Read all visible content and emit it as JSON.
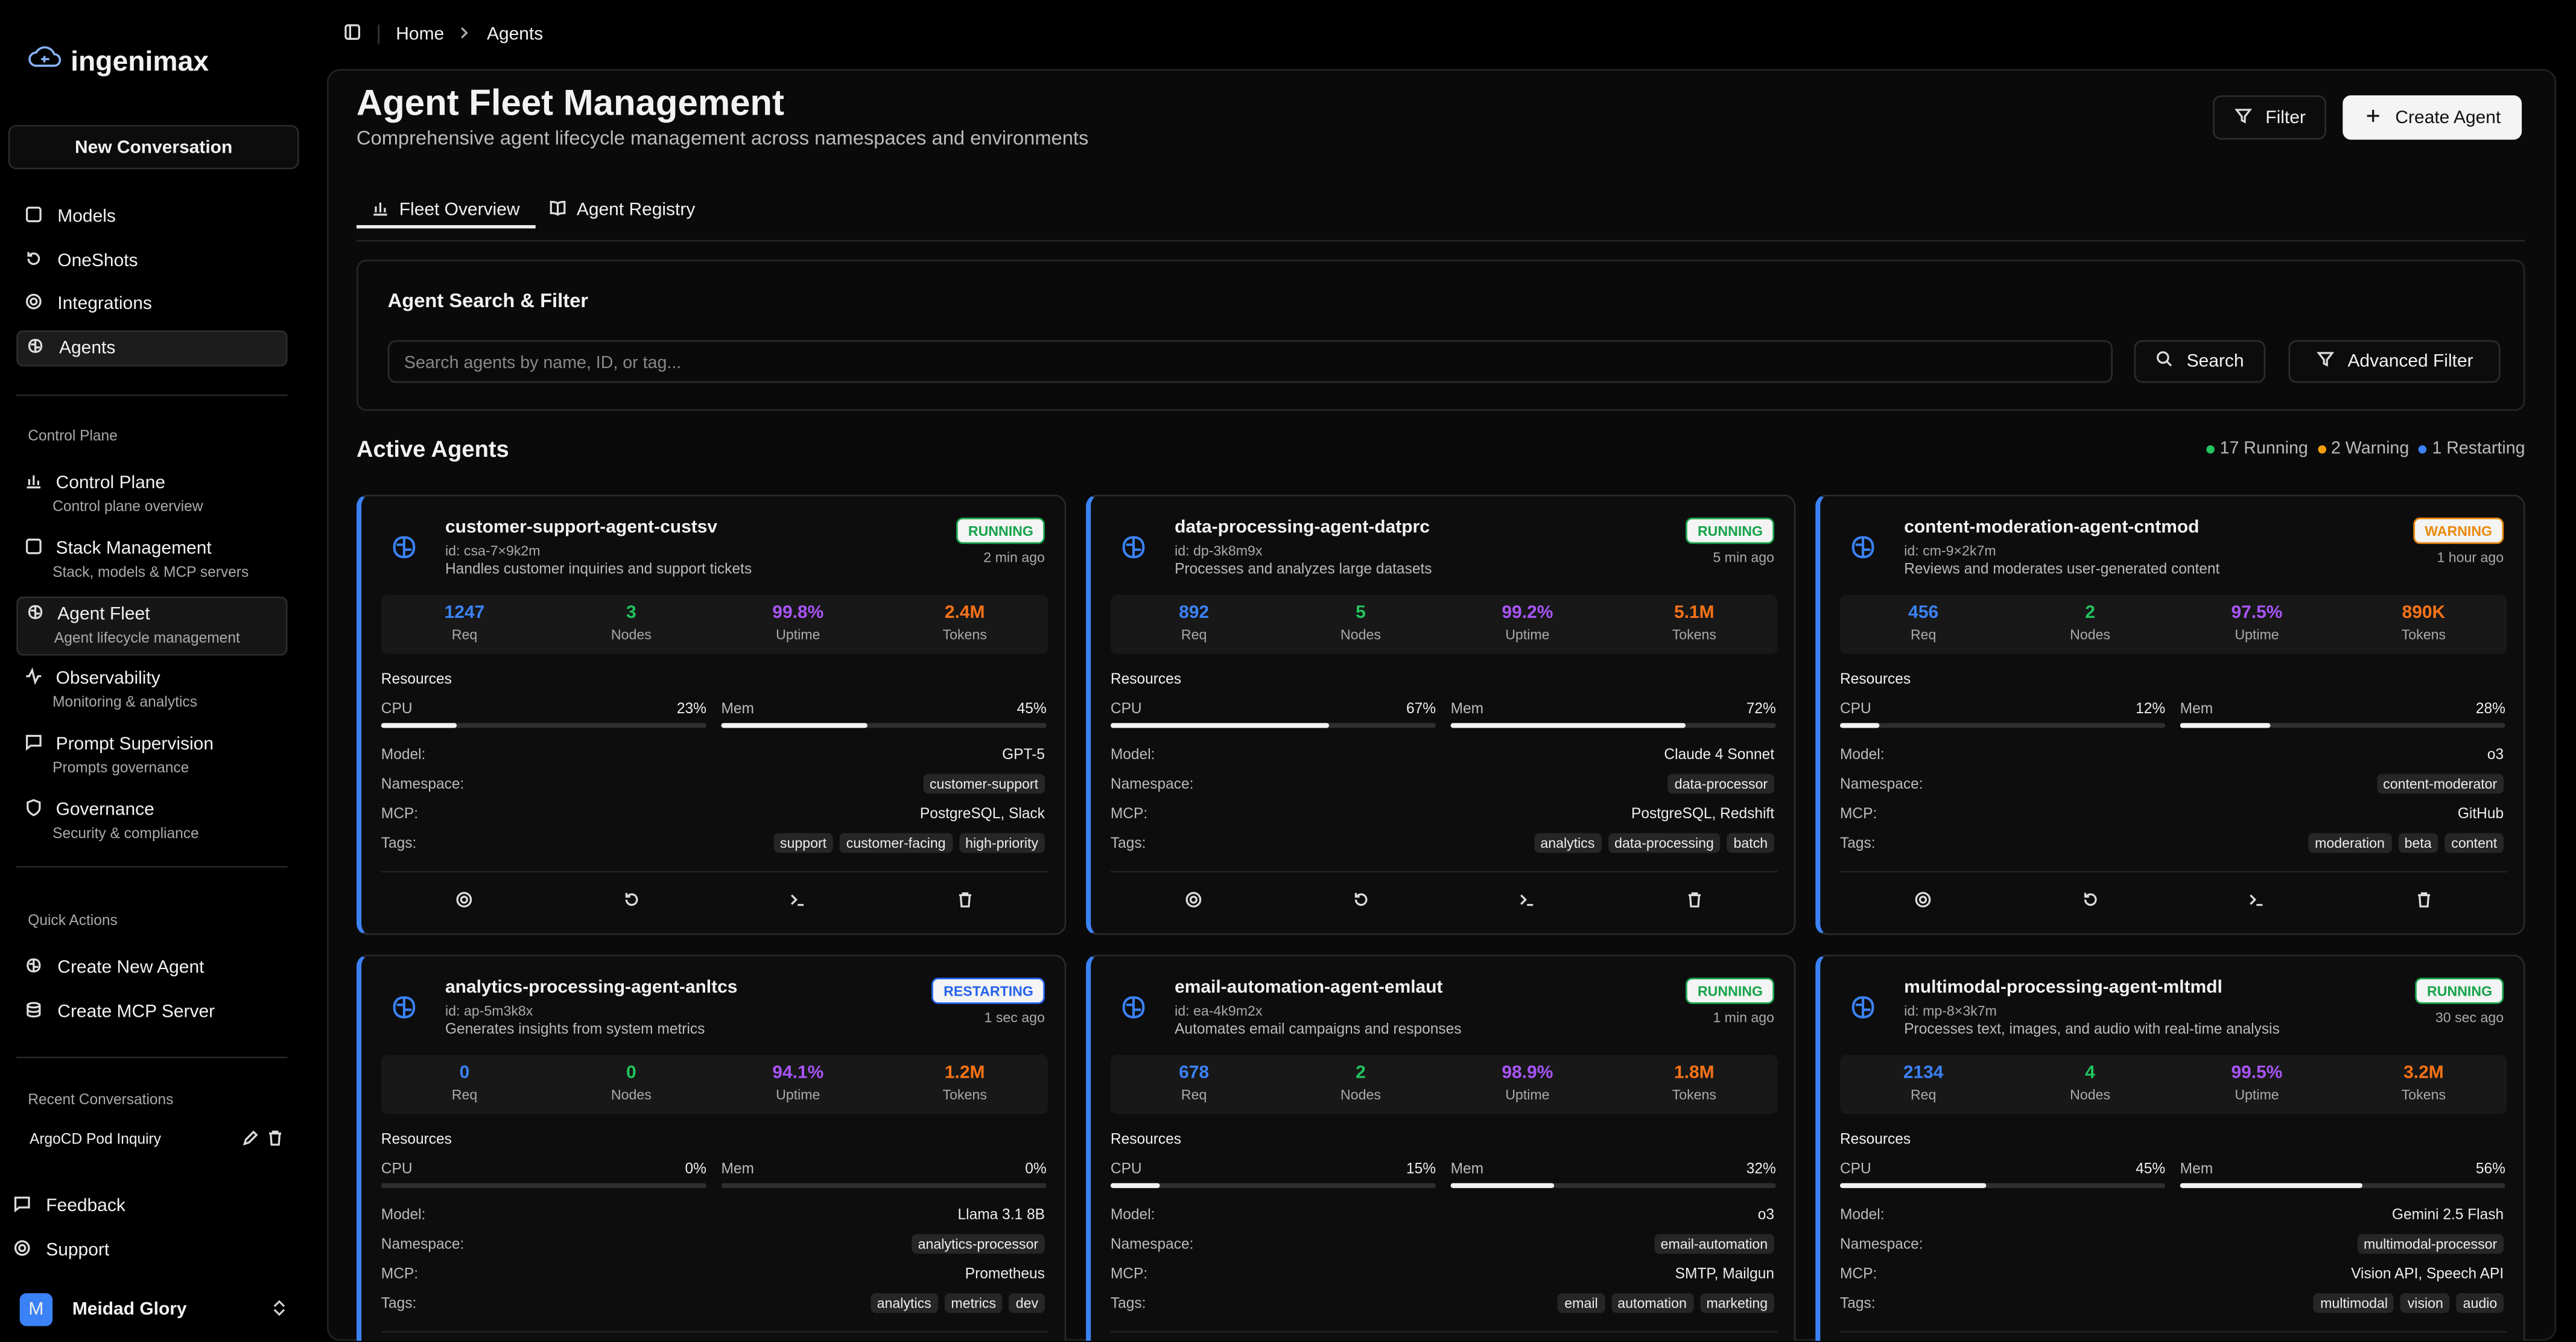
{
  "sidebar": {
    "brand": "ingenimax",
    "new_conversation": "New Conversation",
    "nav": [
      "Models",
      "OneShots",
      "Integrations",
      "Agents"
    ],
    "control_plane": {
      "title": "Control Plane",
      "items": [
        {
          "title": "Control Plane",
          "subtitle": "Control plane overview"
        },
        {
          "title": "Stack Management",
          "subtitle": "Stack, models & MCP servers"
        },
        {
          "title": "Agent Fleet",
          "subtitle": "Agent lifecycle management"
        },
        {
          "title": "Observability",
          "subtitle": "Monitoring & analytics"
        },
        {
          "title": "Prompt Supervision",
          "subtitle": "Prompts governance"
        },
        {
          "title": "Governance",
          "subtitle": "Security & compliance"
        }
      ]
    },
    "quick_actions": {
      "title": "Quick Actions",
      "items": [
        "Create New Agent",
        "Create MCP Server"
      ]
    },
    "recent": {
      "title": "Recent Conversations",
      "items": [
        "ArgoCD Pod Inquiry"
      ]
    },
    "footer": [
      "Feedback",
      "Support"
    ],
    "user": {
      "initial": "M",
      "name": "Meidad Glory"
    }
  },
  "breadcrumb": [
    "Home",
    "Agents"
  ],
  "header": {
    "title": "Agent Fleet Management",
    "subtitle": "Comprehensive agent lifecycle management across namespaces and environments",
    "buttons": [
      "Filter",
      "Create Agent"
    ]
  },
  "tabs": [
    "Fleet Overview",
    "Agent Registry"
  ],
  "search": {
    "title": "Agent Search & Filter",
    "placeholder": "Search agents by name, ID, or tag...",
    "buttons": [
      "Search",
      "Advanced Filter"
    ]
  },
  "active_agents": {
    "title": "Active Agents",
    "summary": [
      {
        "label": "17 Running",
        "color": "#22c55e"
      },
      {
        "label": "2 Warning",
        "color": "#f59e0b"
      },
      {
        "label": "1 Restarting",
        "color": "#3b82f6"
      }
    ],
    "stat_labels": [
      "Req",
      "Nodes",
      "Uptime",
      "Tokens"
    ],
    "field_labels": {
      "resources": "Resources",
      "cpu": "CPU",
      "mem": "Mem",
      "model": "Model:",
      "namespace": "Namespace:",
      "mcp": "MCP:",
      "tags": "Tags:"
    },
    "agents": [
      {
        "name": "customer-support-agent-custsv",
        "id": "id: csa-7×9k2m",
        "description": "Handles customer inquiries and support tickets",
        "status": "RUNNING",
        "color": "#16a34a",
        "time": "2 min ago",
        "stats": [
          "1247",
          "3",
          "99.8%",
          "2.4M"
        ],
        "cpu": {
          "value": 23,
          "label": "23%"
        },
        "mem": {
          "value": 45,
          "label": "45%"
        },
        "model": "GPT-5",
        "namespace": "customer-support",
        "mcp": "PostgreSQL, Slack",
        "tags": [
          "support",
          "customer-facing",
          "high-priority"
        ]
      },
      {
        "name": "data-processing-agent-datprc",
        "id": "id: dp-3k8m9x",
        "description": "Processes and analyzes large datasets",
        "status": "RUNNING",
        "color": "#16a34a",
        "time": "5 min ago",
        "stats": [
          "892",
          "5",
          "99.2%",
          "5.1M"
        ],
        "cpu": {
          "value": 67,
          "label": "67%"
        },
        "mem": {
          "value": 72,
          "label": "72%"
        },
        "model": "Claude 4 Sonnet",
        "namespace": "data-processor",
        "mcp": "PostgreSQL, Redshift",
        "tags": [
          "analytics",
          "data-processing",
          "batch"
        ]
      },
      {
        "name": "content-moderation-agent-cntmod",
        "id": "id: cm-9×2k7m",
        "description": "Reviews and moderates user-generated content",
        "status": "WARNING",
        "color": "#ea8a0c",
        "time": "1 hour ago",
        "stats": [
          "456",
          "2",
          "97.5%",
          "890K"
        ],
        "cpu": {
          "value": 12,
          "label": "12%"
        },
        "mem": {
          "value": 28,
          "label": "28%"
        },
        "model": "o3",
        "namespace": "content-moderator",
        "mcp": "GitHub",
        "tags": [
          "moderation",
          "beta",
          "content"
        ]
      },
      {
        "name": "analytics-processing-agent-anltcs",
        "id": "id: ap-5m3k8x",
        "description": "Generates insights from system metrics",
        "status": "RESTARTING",
        "color": "#2563eb",
        "time": "1 sec ago",
        "stats": [
          "0",
          "0",
          "94.1%",
          "1.2M"
        ],
        "cpu": {
          "value": 0,
          "label": "0%"
        },
        "mem": {
          "value": 0,
          "label": "0%"
        },
        "model": "Llama 3.1 8B",
        "namespace": "analytics-processor",
        "mcp": "Prometheus",
        "tags": [
          "analytics",
          "metrics",
          "dev"
        ]
      },
      {
        "name": "email-automation-agent-emlaut",
        "id": "id: ea-4k9m2x",
        "description": "Automates email campaigns and responses",
        "status": "RUNNING",
        "color": "#16a34a",
        "time": "1 min ago",
        "stats": [
          "678",
          "2",
          "98.9%",
          "1.8M"
        ],
        "cpu": {
          "value": 15,
          "label": "15%"
        },
        "mem": {
          "value": 32,
          "label": "32%"
        },
        "model": "o3",
        "namespace": "email-automation",
        "mcp": "SMTP, Mailgun",
        "tags": [
          "email",
          "automation",
          "marketing"
        ]
      },
      {
        "name": "multimodal-processing-agent-mltmdl",
        "id": "id: mp-8×3k7m",
        "description": "Processes text, images, and audio with real-time analysis",
        "status": "RUNNING",
        "color": "#16a34a",
        "time": "30 sec ago",
        "stats": [
          "2134",
          "4",
          "99.5%",
          "3.2M"
        ],
        "cpu": {
          "value": 45,
          "label": "45%"
        },
        "mem": {
          "value": 56,
          "label": "56%"
        },
        "model": "Gemini 2.5 Flash",
        "namespace": "multimodal-processor",
        "mcp": "Vision API, Speech API",
        "tags": [
          "multimodal",
          "vision",
          "audio"
        ]
      }
    ]
  }
}
